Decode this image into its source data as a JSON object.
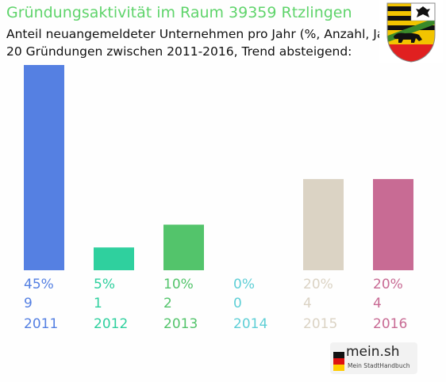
{
  "header": {
    "title": "Gründungsaktivität im Raum 39359 Rtzlingen",
    "subtitle_line1": "Anteil neuangemeldeter Unternehmen pro Jahr (%, Anzahl, Jahr)",
    "subtitle_line2": "20 Gründungen zwischen 2011-2016, Trend absteigend:"
  },
  "crest": {
    "icon": "saxony-anhalt-coat-of-arms-icon"
  },
  "branding": {
    "name": "mein.sh",
    "tagline": "Mein StadtHandbuch",
    "icon": "germany-flag-icon"
  },
  "chart_data": {
    "type": "bar",
    "categories": [
      "2011",
      "2012",
      "2013",
      "2014",
      "2015",
      "2016"
    ],
    "values": [
      45,
      5,
      10,
      0,
      20,
      20
    ],
    "value_labels": [
      "45%",
      "5%",
      "10%",
      "0%",
      "20%",
      "20%"
    ],
    "counts": [
      "9",
      "1",
      "2",
      "0",
      "4",
      "4"
    ],
    "colors": [
      "#5580e2",
      "#2fd09e",
      "#53c46b",
      "#5fcfd6",
      "#dbd3c4",
      "#c86b94"
    ],
    "ylim": [
      0,
      45
    ],
    "grid": false,
    "legend": "none"
  }
}
